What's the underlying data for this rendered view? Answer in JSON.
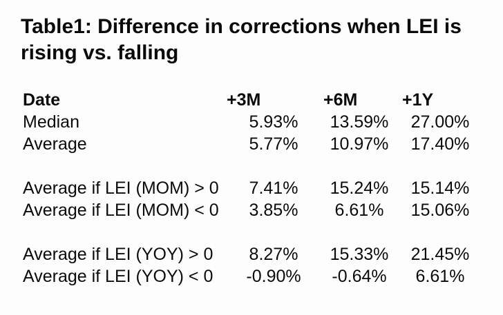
{
  "title": "Table1: Difference in corrections when LEI is rising vs. falling",
  "table": {
    "columns": {
      "date": "Date",
      "m3": "+3M",
      "m6": "+6M",
      "y1": "+1Y"
    },
    "rows": [
      {
        "label": "Median",
        "values": [
          "5.93%",
          "13.59%",
          "27.00%"
        ]
      },
      {
        "label": "Average",
        "values": [
          "5.77%",
          "10.97%",
          "17.40%"
        ]
      },
      {
        "spacer": true
      },
      {
        "label": "Average if LEI (MOM) > 0",
        "values": [
          "7.41%",
          "15.24%",
          "15.14%"
        ]
      },
      {
        "label": "Average if LEI (MOM) < 0",
        "values": [
          "3.85%",
          "6.61%",
          "15.06%"
        ]
      },
      {
        "spacer": true
      },
      {
        "label": "Average if LEI (YOY) > 0",
        "values": [
          "8.27%",
          "15.33%",
          "21.45%"
        ]
      },
      {
        "label": "Average if LEI (YOY) < 0",
        "values": [
          "-0.90%",
          "-0.64%",
          "6.61%"
        ]
      }
    ]
  },
  "colors": {
    "text": "#0a0a0a",
    "background": "#fdfdfd"
  }
}
